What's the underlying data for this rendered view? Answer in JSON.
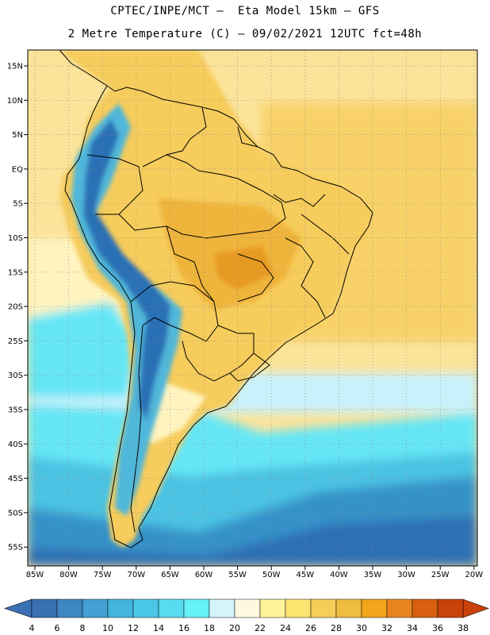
{
  "header": {
    "title_line1": "CPTEC/INPE/MCT –  Eta Model 15km – GFS",
    "title_line2": "2 Metre Temperature (C) – 09/02/2021 12UTC fct=48h"
  },
  "map": {
    "lat_labels": [
      "15N",
      "10N",
      "5N",
      "EQ",
      "5S",
      "10S",
      "15S",
      "20S",
      "25S",
      "30S",
      "35S",
      "40S",
      "45S",
      "50S",
      "55S"
    ],
    "lon_labels": [
      "85W",
      "80W",
      "75W",
      "70W",
      "65W",
      "60W",
      "55W",
      "50W",
      "45W",
      "40W",
      "35W",
      "30W",
      "25W",
      "20W"
    ],
    "field_colors": {
      "ocean_warm": "#fbe39a",
      "ocean_hot": "#f8d269",
      "land_warm": "#f6cc5c",
      "land_hot": "#efb43a",
      "land_very_hot": "#e79a22",
      "coast_mild": "#fff4bf",
      "andes_cold": "#2a6fb5",
      "andes_mid": "#4fb7da",
      "south_light": "#c8f1fb",
      "south_cyan": "#66e6f5",
      "south_mid": "#4bc3e3",
      "south_deep": "#3592c9",
      "south_deepest": "#2e6fb4",
      "coastline": "#000000"
    }
  },
  "colorbar": {
    "labels": [
      "4",
      "6",
      "8",
      "10",
      "12",
      "14",
      "16",
      "18",
      "20",
      "22",
      "24",
      "26",
      "28",
      "30",
      "32",
      "34",
      "36",
      "38"
    ],
    "colors": [
      "#3a70b4",
      "#3f86c4",
      "#42a0d2",
      "#44b5de",
      "#4bc7e6",
      "#56dcee",
      "#66f0f8",
      "#d4f4fb",
      "#fff7df",
      "#fff39a",
      "#fde571",
      "#f6cd58",
      "#eebc40",
      "#f3a61b",
      "#e7851d",
      "#d9600f",
      "#c8420a"
    ],
    "under_color": "#3a70b4",
    "over_color": "#c8420a"
  }
}
